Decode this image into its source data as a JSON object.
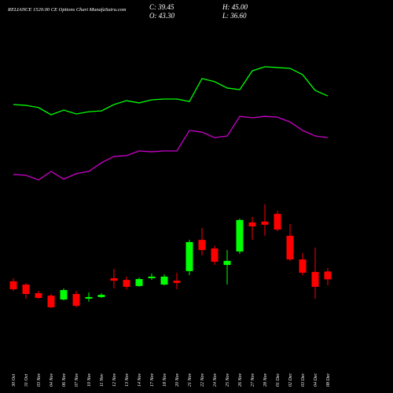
{
  "header": {
    "title": "RELIANCE 1520.00 CE Options Chart MunafaSutra.com",
    "close": "C: 39.45",
    "open": "O: 43.30",
    "high": "H: 45.00",
    "low": "L: 36.60"
  },
  "chart_data": {
    "type": "candlestick",
    "categories": [
      "30 Oct",
      "31 Oct",
      "03 Nov",
      "04 Nov",
      "06 Nov",
      "07 Nov",
      "10 Nov",
      "11 Nov",
      "12 Nov",
      "13 Nov",
      "14 Nov",
      "17 Nov",
      "18 Nov",
      "20 Nov",
      "21 Nov",
      "22 Nov",
      "24 Nov",
      "25 Nov",
      "26 Nov",
      "27 Nov",
      "28 Nov",
      "01 Dec",
      "02 Dec",
      "03 Dec",
      "04 Dec",
      "08 Dec"
    ],
    "open": [
      38.5,
      36.9,
      32.7,
      31.5,
      29.6,
      32.3,
      30.0,
      30.8,
      40.0,
      39.2,
      36.2,
      40.0,
      36.9,
      38.8,
      43.5,
      58.8,
      54.6,
      46.5,
      53.1,
      67.3,
      67.7,
      71.5,
      60.8,
      49.2,
      43.1,
      43.3
    ],
    "high": [
      40.0,
      37.7,
      33.8,
      32.3,
      35.0,
      33.8,
      33.1,
      32.7,
      44.6,
      40.8,
      40.4,
      42.3,
      41.9,
      42.7,
      58.8,
      64.6,
      55.8,
      53.8,
      69.2,
      70.0,
      76.2,
      73.1,
      66.5,
      52.3,
      55.0,
      45.0
    ],
    "low": [
      33.8,
      30.0,
      30.0,
      25.4,
      29.2,
      25.8,
      28.5,
      30.4,
      35.0,
      34.6,
      35.8,
      39.2,
      36.5,
      34.6,
      41.5,
      51.2,
      46.5,
      36.9,
      51.9,
      58.8,
      60.8,
      63.1,
      48.5,
      41.5,
      30.0,
      36.6
    ],
    "close": [
      34.6,
      32.3,
      30.4,
      25.8,
      34.2,
      26.5,
      30.8,
      31.9,
      38.8,
      35.8,
      39.6,
      40.8,
      40.8,
      37.7,
      57.7,
      53.8,
      48.1,
      48.5,
      68.5,
      65.4,
      66.2,
      63.8,
      49.2,
      42.7,
      35.8,
      39.45
    ],
    "up_color": "#00ff00",
    "down_color": "#ff0000",
    "lines": [
      {
        "color": "#00ff00",
        "values": [
          125.0,
          124.6,
          123.5,
          120.0,
          122.3,
          120.4,
          121.5,
          121.9,
          125.0,
          126.9,
          125.8,
          127.3,
          127.7,
          127.7,
          126.5,
          137.7,
          136.2,
          133.1,
          132.3,
          141.5,
          143.5,
          143.1,
          142.7,
          139.6,
          131.9,
          129.2
        ]
      },
      {
        "color": "#cc00cc",
        "values": [
          90.8,
          90.4,
          88.1,
          92.3,
          88.5,
          91.2,
          92.3,
          96.5,
          99.6,
          100.0,
          102.3,
          101.9,
          102.3,
          102.3,
          112.3,
          111.5,
          108.8,
          109.6,
          119.2,
          118.5,
          119.2,
          118.8,
          116.5,
          112.3,
          109.6,
          108.8
        ]
      }
    ],
    "ylim": [
      0,
      170
    ]
  }
}
